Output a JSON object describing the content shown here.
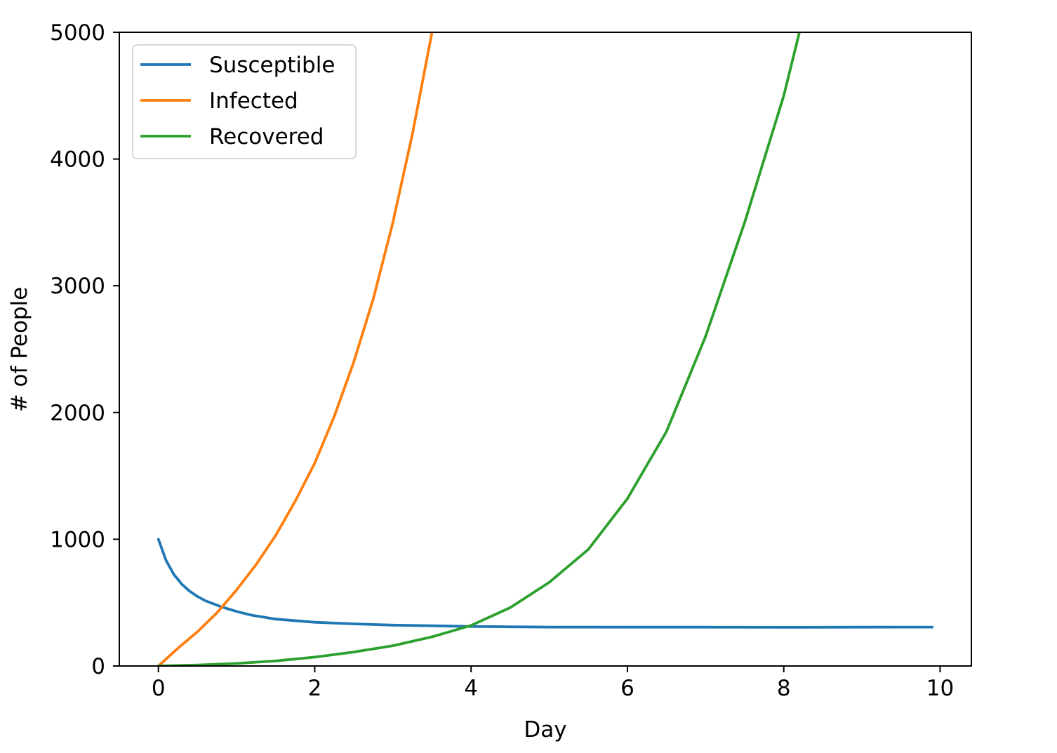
{
  "chart_data": {
    "type": "line",
    "title": "",
    "xlabel": "Day",
    "ylabel": "# of People",
    "xlim": [
      -0.5,
      10.4
    ],
    "ylim": [
      0,
      5000
    ],
    "x_ticks": [
      0,
      2,
      4,
      6,
      8,
      10
    ],
    "y_ticks": [
      0,
      1000,
      2000,
      3000,
      4000,
      5000
    ],
    "grid": false,
    "legend_position": "top-left",
    "series": [
      {
        "name": "Susceptible",
        "color": "#1f77b4",
        "x": [
          0,
          0.1,
          0.2,
          0.3,
          0.4,
          0.5,
          0.6,
          0.8,
          1.0,
          1.2,
          1.5,
          2.0,
          2.5,
          3.0,
          3.5,
          4.0,
          4.5,
          5.0,
          6.0,
          7.0,
          8.0,
          9.0,
          9.9
        ],
        "y": [
          1000,
          830,
          720,
          645,
          590,
          548,
          515,
          468,
          430,
          400,
          370,
          345,
          332,
          322,
          317,
          312,
          309,
          307,
          306,
          306,
          305,
          306,
          307
        ]
      },
      {
        "name": "Infected",
        "color": "#ff7f0e",
        "x": [
          0,
          0.25,
          0.5,
          0.75,
          1.0,
          1.25,
          1.5,
          1.75,
          2.0,
          2.25,
          2.5,
          2.75,
          3.0,
          3.25,
          3.5
        ],
        "y": [
          0,
          140,
          270,
          420,
          600,
          800,
          1030,
          1300,
          1600,
          1970,
          2400,
          2900,
          3500,
          4200,
          5000
        ]
      },
      {
        "name": "Recovered",
        "color": "#2ca02c",
        "x": [
          0,
          0.5,
          1.0,
          1.5,
          2.0,
          2.5,
          3.0,
          3.5,
          4.0,
          4.5,
          5.0,
          5.5,
          6.0,
          6.5,
          7.0,
          7.5,
          8.0,
          8.2
        ],
        "y": [
          0,
          8,
          20,
          40,
          70,
          110,
          160,
          230,
          320,
          460,
          660,
          920,
          1320,
          1850,
          2600,
          3500,
          4500,
          5000
        ]
      }
    ]
  }
}
